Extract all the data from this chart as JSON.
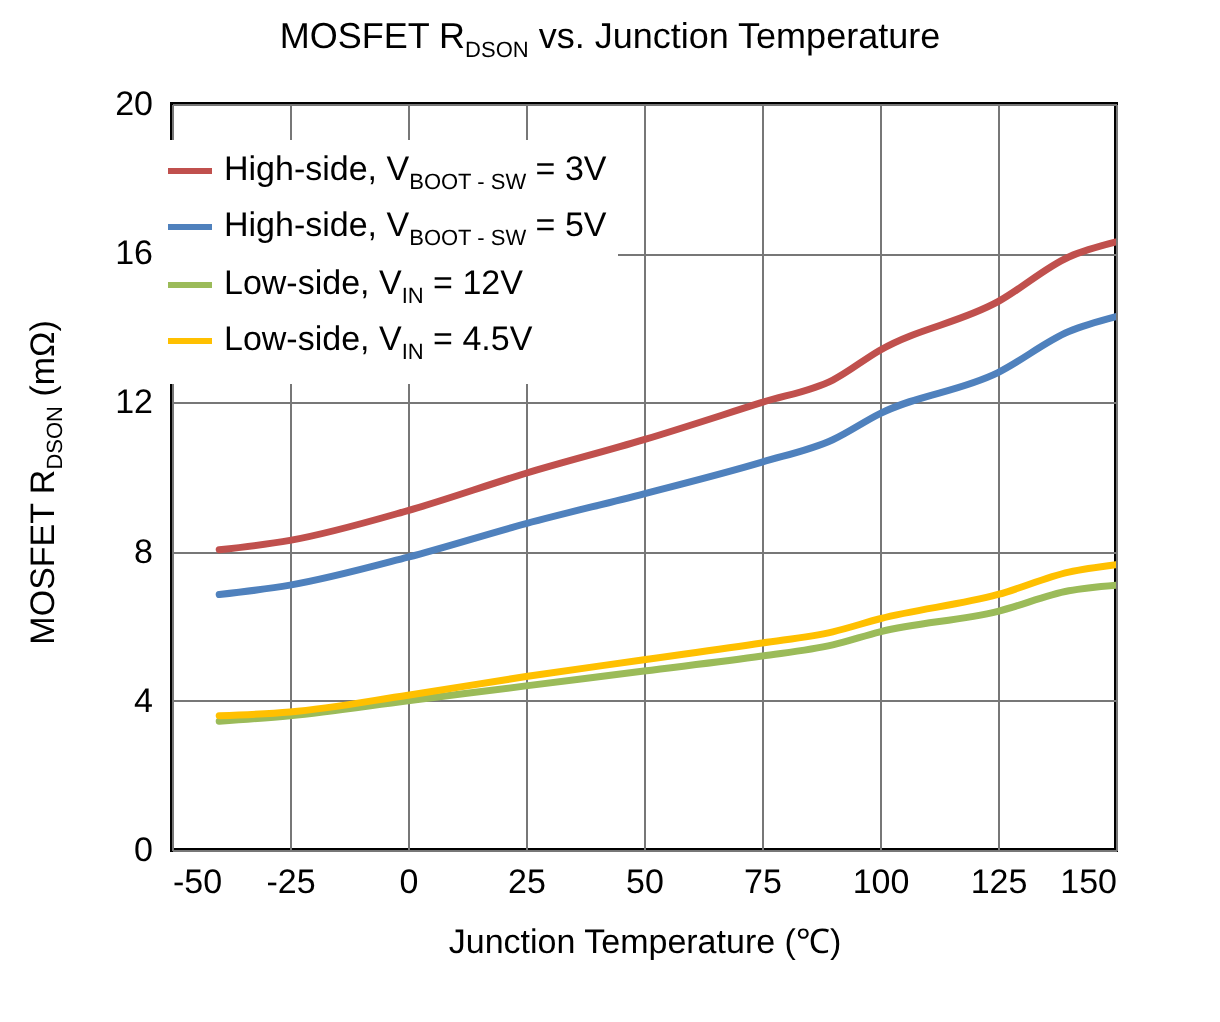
{
  "chart_data": {
    "type": "line",
    "title": "MOSFET R$_{DSON}$ vs. Junction Temperature",
    "xlabel": "Junction Temperature (℃)",
    "ylabel": "MOSFET R$_{DSON}$ (mΩ)",
    "x": [
      -40,
      -25,
      0,
      25,
      50,
      75,
      90,
      100,
      125,
      140,
      150
    ],
    "series": [
      {
        "name": "High-side, V$_{BOOT - SW}$ = 3V",
        "color": "#c0504d",
        "values": [
          8.05,
          8.3,
          9.1,
          10.1,
          11.0,
          12.0,
          12.6,
          13.4,
          14.7,
          15.9,
          16.3
        ]
      },
      {
        "name": "High-side, V$_{BOOT - SW}$ = 5V",
        "color": "#4f81bd",
        "values": [
          6.85,
          7.1,
          7.85,
          8.75,
          9.55,
          10.4,
          11.0,
          11.7,
          12.8,
          13.9,
          14.3
        ]
      },
      {
        "name": "Low-side, V$_{IN}$ = 12V",
        "color": "#9bbb59",
        "values": [
          3.45,
          3.6,
          4.0,
          4.4,
          4.8,
          5.2,
          5.5,
          5.85,
          6.4,
          6.95,
          7.1
        ]
      },
      {
        "name": "Low-side, V$_{IN}$ = 4.5V",
        "color": "#ffc000",
        "values": [
          3.6,
          3.7,
          4.15,
          4.65,
          5.1,
          5.55,
          5.85,
          6.2,
          6.85,
          7.45,
          7.65
        ]
      }
    ],
    "xlim": [
      -50,
      150
    ],
    "xticks": [
      -50,
      -25,
      0,
      25,
      50,
      75,
      100,
      125,
      150
    ],
    "ylim": [
      0,
      20
    ],
    "yticks": [
      0,
      4,
      8,
      12,
      16,
      20
    ],
    "grid": true,
    "legend": "top left",
    "marker": "none",
    "line_style": "solid"
  }
}
